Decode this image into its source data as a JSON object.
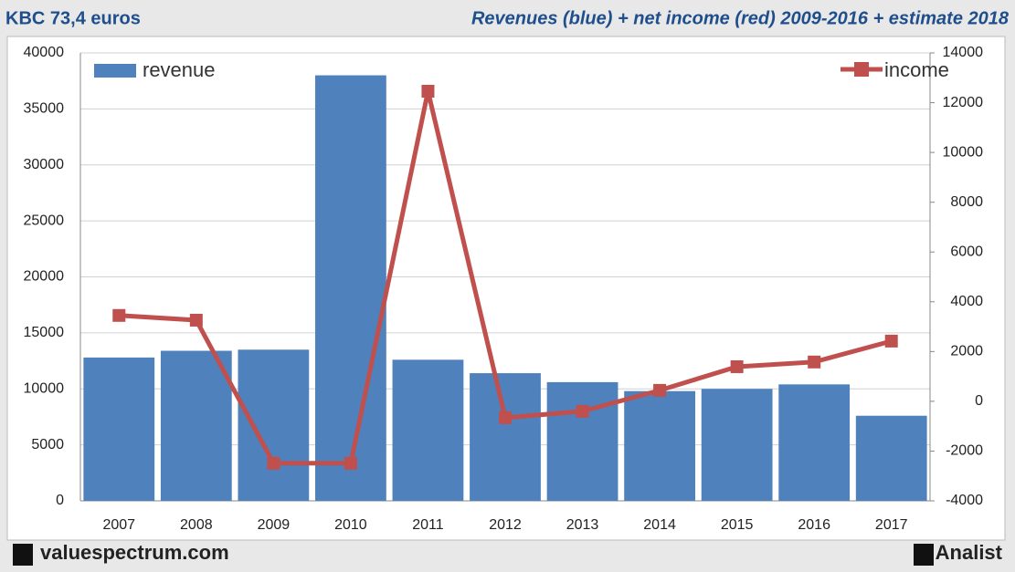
{
  "chart_data": {
    "type": "bar",
    "subtitle": "KBC 73,4 euros",
    "title": "Revenues (blue) + net income (red) 2009-2016 + estimate 2018",
    "categories": [
      "2007",
      "2008",
      "2009",
      "2010",
      "2011",
      "2012",
      "2013",
      "2014",
      "2015",
      "2016",
      "2017"
    ],
    "series": [
      {
        "name": "revenue",
        "type": "bar",
        "color": "#4f81bd",
        "values": [
          12800,
          13400,
          13500,
          38000,
          12600,
          11400,
          10600,
          9800,
          10000,
          10400,
          7600
        ]
      },
      {
        "name": "income",
        "type": "line",
        "axis": "y2",
        "color": "#c0504d",
        "values": [
          3450,
          3260,
          -2490,
          -2490,
          12460,
          -660,
          -400,
          440,
          1390,
          1580,
          2420
        ]
      }
    ],
    "ylim": [
      0,
      40000
    ],
    "yticks": [
      0,
      5000,
      10000,
      15000,
      20000,
      25000,
      30000,
      35000,
      40000
    ],
    "y2lim": [
      -4000,
      14000
    ],
    "y2ticks": [
      -4000,
      -2000,
      0,
      2000,
      4000,
      6000,
      8000,
      10000,
      12000,
      14000
    ],
    "grid": true,
    "annotations": [
      "valuespectrum.com",
      "Analist"
    ]
  }
}
